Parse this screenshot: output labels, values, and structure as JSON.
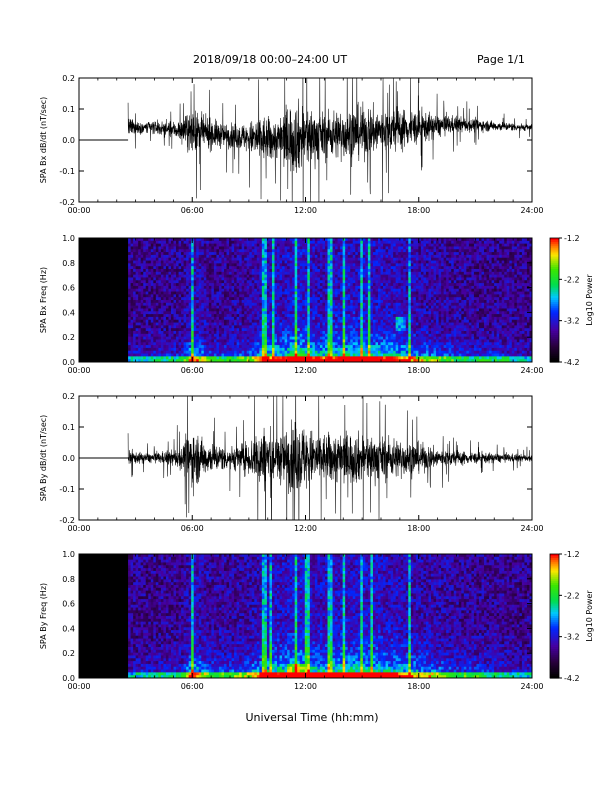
{
  "header": {
    "title": "2018/09/18   00:00–24:00 UT",
    "page": "Page 1/1"
  },
  "x_axis_title": "Universal Time (hh:mm)",
  "chart_data": [
    {
      "type": "line",
      "ylabel": "SPA Bx dB/dt (nT/sec)",
      "x_ticks": [
        "00:00",
        "06:00",
        "12:00",
        "18:00",
        "24:00"
      ],
      "y_ticks": [
        "0.2",
        "0.1",
        "0.0",
        "-0.1",
        "-0.2"
      ],
      "xlim_hours": [
        0,
        24
      ],
      "ylim": [
        -0.2,
        0.2
      ],
      "data_gap_hours": [
        0,
        2.6
      ],
      "gap_level": 0.0,
      "envelope": {
        "hours": [
          2.6,
          3,
          4,
          5,
          5.5,
          6,
          6.5,
          7,
          8,
          9,
          9.5,
          10,
          10.5,
          11,
          11.5,
          12,
          12.5,
          13,
          14,
          15,
          16,
          17,
          18,
          19,
          20,
          21,
          22,
          23,
          24
        ],
        "amplitude": [
          0.06,
          0.04,
          0.04,
          0.05,
          0.07,
          0.14,
          0.1,
          0.09,
          0.07,
          0.09,
          0.15,
          0.14,
          0.12,
          0.2,
          0.22,
          0.2,
          0.16,
          0.14,
          0.16,
          0.16,
          0.14,
          0.13,
          0.1,
          0.07,
          0.05,
          0.04,
          0.03,
          0.025,
          0.02
        ]
      },
      "offset": {
        "hours": [
          2.6,
          4,
          10,
          16,
          20,
          24
        ],
        "value": [
          0.04,
          0.04,
          0.0,
          0.03,
          0.05,
          0.04
        ]
      }
    },
    {
      "type": "heatmap",
      "ylabel": "SPA Bx Freq (Hz)",
      "x_ticks": [
        "00:00",
        "06:00",
        "12:00",
        "18:00",
        "24:00"
      ],
      "y_ticks": [
        "1.0",
        "0.8",
        "0.6",
        "0.4",
        "0.2",
        "0.0"
      ],
      "xlim_hours": [
        0,
        24
      ],
      "ylim_hz": [
        0,
        1
      ],
      "data_gap_hours": [
        0,
        2.6
      ],
      "colorbar": {
        "label": "Log10 Power",
        "ticks": [
          "-1.2",
          "-2.2",
          "-3.2",
          "-4.2"
        ],
        "range": [
          -4.2,
          -1.2
        ]
      },
      "activity_hours": [
        2.6,
        4,
        5.5,
        6,
        7,
        8,
        9,
        10,
        11,
        11.5,
        12,
        13,
        14,
        15,
        16,
        17,
        18,
        19,
        20,
        21,
        22,
        23,
        24
      ],
      "activity_level": [
        0.2,
        0.25,
        0.3,
        0.7,
        0.35,
        0.35,
        0.45,
        0.7,
        0.8,
        1.0,
        0.85,
        0.7,
        0.85,
        0.85,
        0.8,
        0.7,
        0.55,
        0.45,
        0.35,
        0.3,
        0.3,
        0.25,
        0.2
      ],
      "streak_hours": [
        6.0,
        9.8,
        10.3,
        11.5,
        12.2,
        13.3,
        14.0,
        15.0,
        15.4,
        17.5
      ],
      "hotspot_hz": 0.31,
      "hotspot_hours": [
        16.8,
        17.3
      ]
    },
    {
      "type": "line",
      "ylabel": "SPA By dB/dt (nT/sec)",
      "x_ticks": [
        "00:00",
        "06:00",
        "12:00",
        "18:00",
        "24:00"
      ],
      "y_ticks": [
        "0.2",
        "0.1",
        "0.0",
        "-0.1",
        "-0.2"
      ],
      "xlim_hours": [
        0,
        24
      ],
      "ylim": [
        -0.2,
        0.2
      ],
      "data_gap_hours": [
        0,
        2.6
      ],
      "gap_level": 0.0,
      "envelope": {
        "hours": [
          2.6,
          3,
          4,
          5,
          5.5,
          6,
          6.5,
          7,
          8,
          9,
          9.5,
          10,
          10.5,
          11,
          11.5,
          12,
          12.5,
          13,
          14,
          15,
          16,
          17,
          18,
          19,
          20,
          21,
          22,
          23,
          24
        ],
        "amplitude": [
          0.05,
          0.035,
          0.03,
          0.05,
          0.08,
          0.19,
          0.12,
          0.09,
          0.07,
          0.1,
          0.18,
          0.2,
          0.14,
          0.18,
          0.22,
          0.2,
          0.16,
          0.15,
          0.16,
          0.15,
          0.13,
          0.12,
          0.09,
          0.06,
          0.045,
          0.035,
          0.03,
          0.025,
          0.02
        ]
      },
      "offset": {
        "hours": [
          2.6,
          24
        ],
        "value": [
          0.0,
          0.0
        ]
      }
    },
    {
      "type": "heatmap",
      "ylabel": "SPA By Freq (Hz)",
      "x_ticks": [
        "00:00",
        "06:00",
        "12:00",
        "18:00",
        "24:00"
      ],
      "y_ticks": [
        "1.0",
        "0.8",
        "0.6",
        "0.4",
        "0.2",
        "0.0"
      ],
      "xlim_hours": [
        0,
        24
      ],
      "ylim_hz": [
        0,
        1
      ],
      "data_gap_hours": [
        0,
        2.6
      ],
      "colorbar": {
        "label": "Log10 Power",
        "ticks": [
          "-1.2",
          "-2.2",
          "-3.2",
          "-4.2"
        ],
        "range": [
          -4.2,
          -1.2
        ]
      },
      "activity_hours": [
        2.6,
        4,
        5.5,
        6,
        7,
        8,
        9,
        10,
        11,
        11.5,
        12,
        13,
        14,
        15,
        16,
        17,
        18,
        19,
        20,
        21,
        22,
        23,
        24
      ],
      "activity_level": [
        0.2,
        0.25,
        0.3,
        0.75,
        0.4,
        0.4,
        0.5,
        0.75,
        0.85,
        1.0,
        0.85,
        0.8,
        0.85,
        0.85,
        0.8,
        0.7,
        0.6,
        0.5,
        0.4,
        0.35,
        0.3,
        0.25,
        0.2
      ],
      "streak_hours": [
        6.0,
        9.8,
        10.2,
        11.5,
        12.1,
        13.3,
        14.0,
        15.0,
        15.5,
        17.5
      ],
      "hotspot_hz": 0.0,
      "hotspot_hours": [
        11.0,
        12.0
      ]
    }
  ]
}
